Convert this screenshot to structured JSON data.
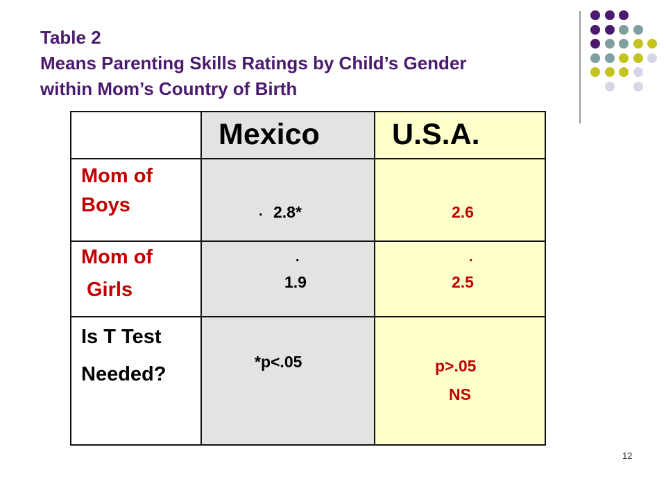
{
  "slide": {
    "title_lines": [
      "Table 2",
      "Means Parenting Skills Ratings by Child’s Gender",
      "within Mom’s Country of Birth"
    ],
    "slide_number": "12"
  },
  "table": {
    "headers": [
      "",
      "Mexico",
      "U.S.A."
    ],
    "rows": [
      {
        "label_lines": [
          "Mom of",
          "Boys"
        ],
        "mexico": {
          "prefix": ".",
          "value": "2.8*"
        },
        "usa": {
          "value": "2.6"
        }
      },
      {
        "label_lines": [
          "Mom of",
          "Girls"
        ],
        "mexico": {
          "dot": ".",
          "value": "1.9"
        },
        "usa": {
          "dot": ".",
          "value": "2.5"
        }
      },
      {
        "label_lines": [
          "Is T Test",
          "Needed?"
        ],
        "mexico": {
          "value": "*p<.05"
        },
        "usa": {
          "value": "p>.05",
          "note": "NS"
        }
      }
    ]
  },
  "colors": {
    "title": "#4b1a6e",
    "row_label": "#c00000",
    "mexico_column_bg": "#e3e3e3",
    "usa_column_bg": "#ffffcc",
    "dot_purple": "#4b1a6e",
    "dot_teal": "#7f9fa0",
    "dot_olive": "#c4c421",
    "dot_lavender": "#d6d6e9"
  },
  "decoration": {
    "dot_grid": [
      [
        "purple",
        "purple",
        "purple",
        "",
        ""
      ],
      [
        "purple",
        "purple",
        "teal",
        "teal",
        ""
      ],
      [
        "purple",
        "teal",
        "teal",
        "olive",
        "olive"
      ],
      [
        "teal",
        "teal",
        "olive",
        "olive",
        "lavender"
      ],
      [
        "olive",
        "olive",
        "olive",
        "lavender",
        ""
      ],
      [
        "",
        "lavender",
        "",
        "lavender",
        ""
      ]
    ]
  }
}
